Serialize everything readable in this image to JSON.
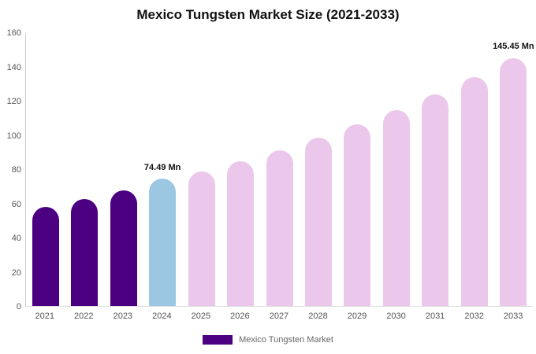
{
  "chart_data": {
    "type": "bar",
    "title": "Mexico Tungsten Market Size (2021-2033)",
    "categories": [
      "2021",
      "2022",
      "2023",
      "2024",
      "2025",
      "2026",
      "2027",
      "2028",
      "2029",
      "2030",
      "2031",
      "2032",
      "2033"
    ],
    "values": [
      58,
      62.5,
      68,
      74.49,
      79,
      85,
      91.5,
      98.5,
      106.5,
      115,
      124,
      134,
      145.45
    ],
    "unit": "Mn",
    "ylim": [
      0,
      160
    ],
    "yticks": [
      0,
      20,
      40,
      60,
      80,
      100,
      120,
      140,
      160
    ],
    "grid": false,
    "legend_position": "bottom",
    "series_colors": {
      "historical": "#4B0082",
      "highlight": "#9CC7E2",
      "forecast": "#EBC8EB"
    },
    "color_by_index": [
      "historical",
      "historical",
      "historical",
      "highlight",
      "forecast",
      "forecast",
      "forecast",
      "forecast",
      "forecast",
      "forecast",
      "forecast",
      "forecast",
      "forecast"
    ],
    "data_labels": [
      {
        "index": 3,
        "text": "74.49 Mn"
      },
      {
        "index": 12,
        "text": "145.45 Mn"
      }
    ],
    "legend": [
      {
        "label": "Mexico Tungsten Market",
        "color": "#4B0082"
      }
    ]
  }
}
